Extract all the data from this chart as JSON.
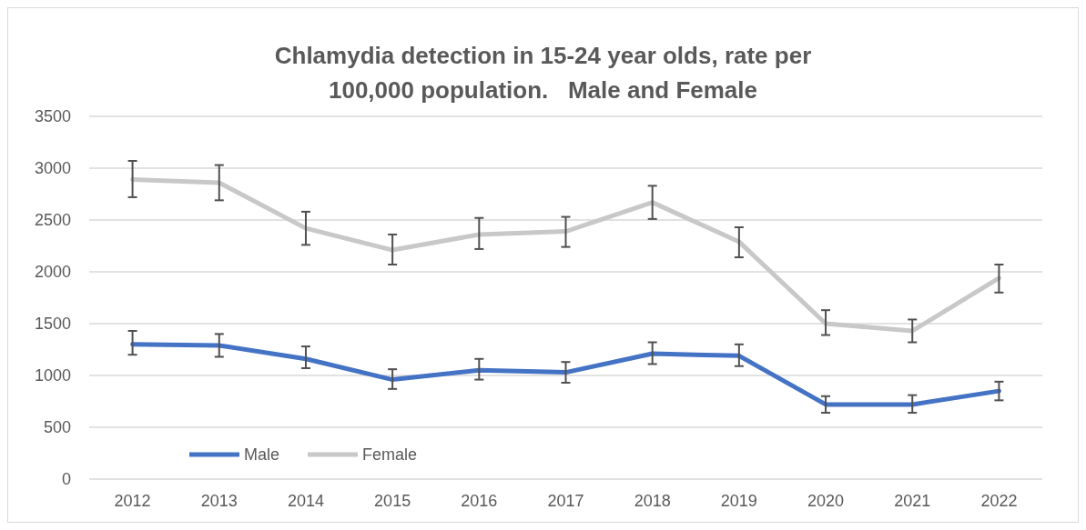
{
  "chart_data": {
    "type": "line",
    "title": "Chlamydia detection in 15-24 year olds, rate per 100,000 population.   Male and Female",
    "categories": [
      "2012",
      "2013",
      "2014",
      "2015",
      "2016",
      "2017",
      "2018",
      "2019",
      "2020",
      "2021",
      "2022"
    ],
    "series": [
      {
        "name": "Male",
        "color": "#4472c4",
        "values": [
          1300,
          1290,
          1160,
          960,
          1050,
          1030,
          1210,
          1190,
          720,
          720,
          850
        ],
        "errors": [
          [
            1200,
            1430
          ],
          [
            1180,
            1400
          ],
          [
            1070,
            1280
          ],
          [
            870,
            1060
          ],
          [
            960,
            1160
          ],
          [
            930,
            1130
          ],
          [
            1110,
            1320
          ],
          [
            1090,
            1300
          ],
          [
            640,
            800
          ],
          [
            640,
            810
          ],
          [
            760,
            940
          ]
        ]
      },
      {
        "name": "Female",
        "color": "#c8c8c8",
        "values": [
          2890,
          2860,
          2420,
          2210,
          2360,
          2390,
          2670,
          2290,
          1500,
          1430,
          1940
        ],
        "errors": [
          [
            2720,
            3070
          ],
          [
            2690,
            3030
          ],
          [
            2260,
            2580
          ],
          [
            2070,
            2360
          ],
          [
            2220,
            2520
          ],
          [
            2240,
            2530
          ],
          [
            2510,
            2830
          ],
          [
            2140,
            2430
          ],
          [
            1390,
            1630
          ],
          [
            1320,
            1540
          ],
          [
            1800,
            2070
          ]
        ]
      }
    ],
    "ylim": [
      0,
      3500
    ],
    "yticks": [
      0,
      500,
      1000,
      1500,
      2000,
      2500,
      3000,
      3500
    ],
    "grid": "y",
    "legend": "bottom left",
    "marker": "none",
    "line_style": "solid"
  }
}
